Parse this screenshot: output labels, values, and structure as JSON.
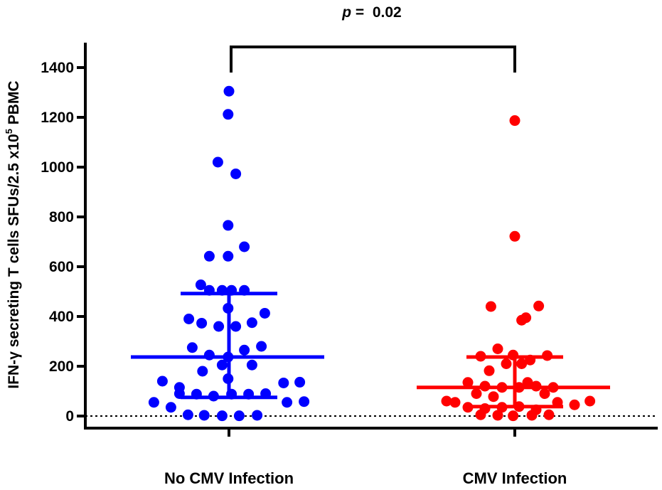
{
  "chart_data": {
    "type": "scatter",
    "annotation": {
      "p_label": "p",
      "p_text": " =  0.02"
    },
    "ylabel": {
      "main": "IFN-γ secreting T cells SFUs/2.5 x10",
      "superscript": "5",
      "suffix": " PBMC"
    },
    "ylim": [
      -60,
      1500
    ],
    "y_ticks": [
      0,
      200,
      400,
      600,
      800,
      1000,
      1200,
      1400
    ],
    "y_tick_labels": [
      "0",
      "200",
      "400",
      "600",
      "800",
      "1000",
      "1200",
      "1400"
    ],
    "reference_line": 0,
    "categories": [
      "No CMV Infection",
      "CMV Infection"
    ],
    "series": [
      {
        "category_index": 0,
        "color": "#0000ff",
        "median": 237,
        "iqr": [
          75,
          492
        ],
        "points": [
          {
            "dx": 0.0,
            "y": 1305
          },
          {
            "dx": -0.01,
            "y": 1212
          },
          {
            "dx": -0.13,
            "y": 1020
          },
          {
            "dx": 0.08,
            "y": 973
          },
          {
            "dx": -0.01,
            "y": 766
          },
          {
            "dx": -0.23,
            "y": 642
          },
          {
            "dx": -0.01,
            "y": 642
          },
          {
            "dx": 0.18,
            "y": 680
          },
          {
            "dx": -0.33,
            "y": 527
          },
          {
            "dx": -0.23,
            "y": 505
          },
          {
            "dx": -0.08,
            "y": 505
          },
          {
            "dx": 0.03,
            "y": 505
          },
          {
            "dx": 0.18,
            "y": 505
          },
          {
            "dx": -0.01,
            "y": 433
          },
          {
            "dx": 0.42,
            "y": 413
          },
          {
            "dx": -0.47,
            "y": 390
          },
          {
            "dx": -0.32,
            "y": 373
          },
          {
            "dx": -0.12,
            "y": 360
          },
          {
            "dx": 0.08,
            "y": 360
          },
          {
            "dx": 0.27,
            "y": 375
          },
          {
            "dx": -0.43,
            "y": 275
          },
          {
            "dx": -0.23,
            "y": 245
          },
          {
            "dx": -0.01,
            "y": 237
          },
          {
            "dx": 0.18,
            "y": 265
          },
          {
            "dx": 0.38,
            "y": 280
          },
          {
            "dx": -0.08,
            "y": 205
          },
          {
            "dx": 0.27,
            "y": 205
          },
          {
            "dx": -0.31,
            "y": 180
          },
          {
            "dx": -0.01,
            "y": 150
          },
          {
            "dx": -0.78,
            "y": 140
          },
          {
            "dx": -0.58,
            "y": 115
          },
          {
            "dx": 0.64,
            "y": 133
          },
          {
            "dx": 0.83,
            "y": 136
          },
          {
            "dx": -0.58,
            "y": 90
          },
          {
            "dx": -0.38,
            "y": 88
          },
          {
            "dx": -0.18,
            "y": 80
          },
          {
            "dx": 0.03,
            "y": 88
          },
          {
            "dx": 0.23,
            "y": 88
          },
          {
            "dx": 0.43,
            "y": 90
          },
          {
            "dx": -0.88,
            "y": 55
          },
          {
            "dx": -0.68,
            "y": 35
          },
          {
            "dx": 0.68,
            "y": 55
          },
          {
            "dx": 0.88,
            "y": 58
          },
          {
            "dx": -0.48,
            "y": 5
          },
          {
            "dx": -0.29,
            "y": 3
          },
          {
            "dx": -0.08,
            "y": 1
          },
          {
            "dx": 0.12,
            "y": 1
          },
          {
            "dx": 0.33,
            "y": 3
          }
        ]
      },
      {
        "category_index": 1,
        "color": "#ff0000",
        "median": 115,
        "iqr": [
          38,
          237
        ],
        "points": [
          {
            "dx": 0.0,
            "y": 1187
          },
          {
            "dx": 0.0,
            "y": 722
          },
          {
            "dx": -0.28,
            "y": 440
          },
          {
            "dx": 0.08,
            "y": 385
          },
          {
            "dx": 0.13,
            "y": 395
          },
          {
            "dx": 0.28,
            "y": 442
          },
          {
            "dx": -0.2,
            "y": 270
          },
          {
            "dx": -0.02,
            "y": 245
          },
          {
            "dx": 0.18,
            "y": 225
          },
          {
            "dx": 0.38,
            "y": 243
          },
          {
            "dx": -0.4,
            "y": 240
          },
          {
            "dx": -0.1,
            "y": 210
          },
          {
            "dx": 0.08,
            "y": 210
          },
          {
            "dx": -0.3,
            "y": 182
          },
          {
            "dx": -0.55,
            "y": 135
          },
          {
            "dx": -0.35,
            "y": 120
          },
          {
            "dx": -0.15,
            "y": 115
          },
          {
            "dx": 0.05,
            "y": 115
          },
          {
            "dx": 0.25,
            "y": 120
          },
          {
            "dx": 0.45,
            "y": 115
          },
          {
            "dx": -0.45,
            "y": 90
          },
          {
            "dx": -0.25,
            "y": 78
          },
          {
            "dx": 0.15,
            "y": 135
          },
          {
            "dx": 0.35,
            "y": 90
          },
          {
            "dx": -0.8,
            "y": 60
          },
          {
            "dx": -0.7,
            "y": 55
          },
          {
            "dx": -0.55,
            "y": 35
          },
          {
            "dx": -0.35,
            "y": 30
          },
          {
            "dx": -0.15,
            "y": 35
          },
          {
            "dx": 0.05,
            "y": 38
          },
          {
            "dx": 0.25,
            "y": 25
          },
          {
            "dx": 0.5,
            "y": 55
          },
          {
            "dx": 0.7,
            "y": 45
          },
          {
            "dx": 0.88,
            "y": 60
          },
          {
            "dx": -0.4,
            "y": 5
          },
          {
            "dx": -0.2,
            "y": 3
          },
          {
            "dx": -0.02,
            "y": 1
          },
          {
            "dx": 0.2,
            "y": 3
          },
          {
            "dx": 0.4,
            "y": 5
          }
        ]
      }
    ],
    "grid": false,
    "legend": "none"
  }
}
